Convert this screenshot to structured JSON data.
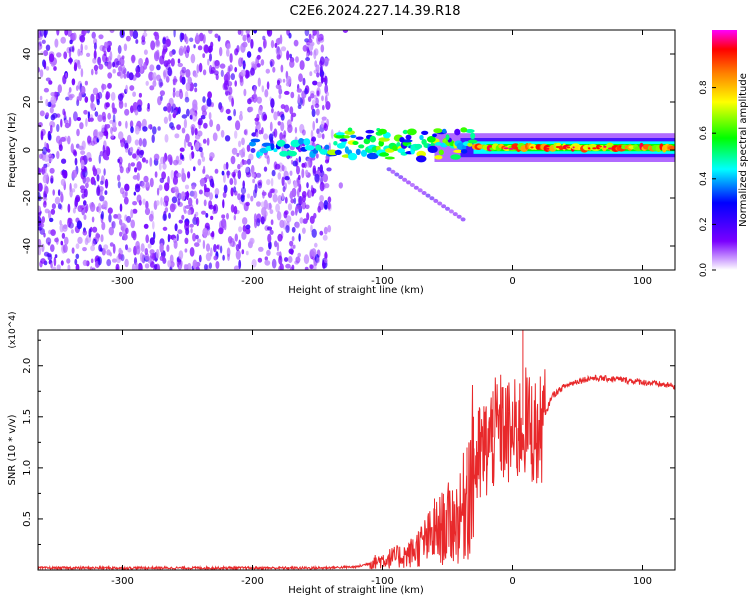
{
  "title": "C2E6.2024.227.14.39.R18",
  "chart_data": [
    {
      "type": "heatmap",
      "xlabel": "Height of straight line (km)",
      "ylabel": "Frequency (Hz)",
      "xlim": [
        -365,
        125
      ],
      "ylim": [
        -50,
        50
      ],
      "xticks": [
        -300,
        -200,
        -100,
        0,
        100
      ],
      "yticks": [
        -40,
        -20,
        0,
        20,
        40
      ],
      "colorbar": {
        "label": "Normalized spectral amplitude",
        "range": [
          0,
          1
        ],
        "ticks": [
          "0.0",
          "0.2",
          "0.4",
          "0.6",
          "0.8"
        ],
        "colors": [
          "#ffffff",
          "#7a00ff",
          "#0000ff",
          "#00ffff",
          "#00ff00",
          "#ffff00",
          "#ff8000",
          "#ff0000",
          "#ff00ff"
        ]
      },
      "features": [
        {
          "name": "noise",
          "x_range": [
            -365,
            -140
          ],
          "y_range": [
            -50,
            50
          ],
          "amplitude": 0.15
        },
        {
          "name": "carrier",
          "x_range": [
            -200,
            125
          ],
          "y_center": 1,
          "amplitude": 0.85
        },
        {
          "name": "sideband",
          "x_range": [
            -135,
            -30
          ],
          "y_center": 6,
          "amplitude": 0.6
        }
      ]
    },
    {
      "type": "line",
      "xlabel": "Height of straight line (km)",
      "ylabel": "SNR (10 * v/v)",
      "multiplier": "(x10^4)",
      "xlim": [
        -365,
        125
      ],
      "ylim": [
        0,
        2.35
      ],
      "xticks": [
        -300,
        -200,
        -100,
        0,
        100
      ],
      "yticks": [
        0.5,
        1.0,
        1.5,
        2.0
      ],
      "series": [
        {
          "color": "#e8282a",
          "envelope": [
            [
              -365,
              0.02
            ],
            [
              -150,
              0.02
            ],
            [
              -120,
              0.03
            ],
            [
              -100,
              0.1
            ],
            [
              -80,
              0.15
            ],
            [
              -60,
              0.35
            ],
            [
              -50,
              0.45
            ],
            [
              -40,
              0.5
            ],
            [
              -30,
              1.0
            ],
            [
              -20,
              1.2
            ],
            [
              -10,
              1.4
            ],
            [
              0,
              1.3
            ],
            [
              10,
              1.45
            ],
            [
              20,
              1.3
            ],
            [
              30,
              1.7
            ],
            [
              40,
              1.8
            ],
            [
              50,
              1.85
            ],
            [
              60,
              1.88
            ],
            [
              80,
              1.87
            ],
            [
              100,
              1.84
            ],
            [
              125,
              1.8
            ]
          ],
          "spikes": [
            [
              8,
              2.35
            ],
            [
              -15,
              1.75
            ],
            [
              -30,
              1.5
            ],
            [
              -60,
              0.7
            ],
            [
              -35,
              1.2
            ]
          ]
        }
      ]
    }
  ]
}
